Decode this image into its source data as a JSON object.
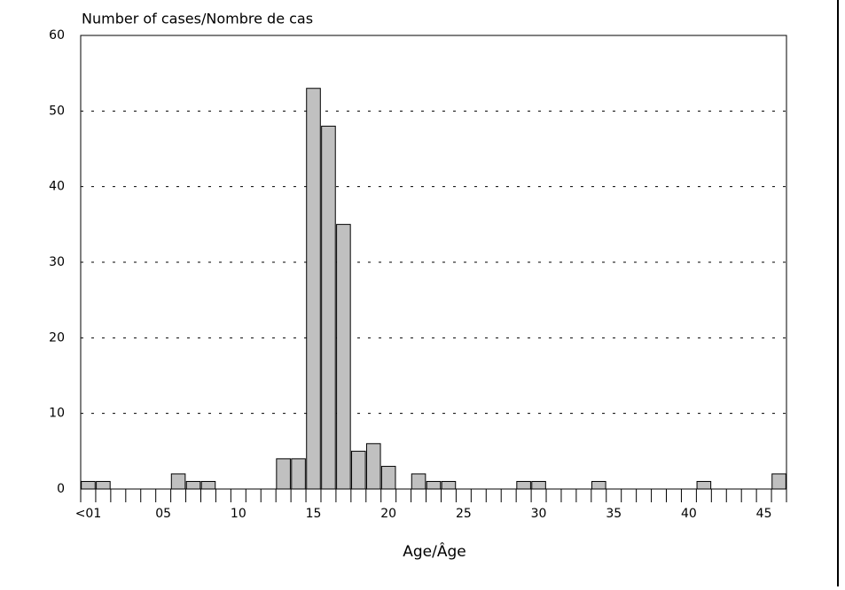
{
  "chart_data": {
    "type": "bar",
    "y_label": "Number of cases/Nombre de cas",
    "x_label": "Age/Âge",
    "categories": [
      "<01",
      null,
      null,
      null,
      null,
      "05",
      null,
      null,
      null,
      null,
      "10",
      null,
      null,
      null,
      null,
      "15",
      null,
      null,
      null,
      null,
      "20",
      null,
      null,
      null,
      null,
      "25",
      null,
      null,
      null,
      null,
      "30",
      null,
      null,
      null,
      null,
      "35",
      null,
      null,
      null,
      null,
      "40",
      null,
      null,
      null,
      null,
      "45",
      null
    ],
    "values": [
      1,
      1,
      0,
      0,
      0,
      0,
      2,
      1,
      1,
      0,
      0,
      0,
      0,
      4,
      4,
      53,
      48,
      35,
      5,
      6,
      3,
      0,
      2,
      1,
      1,
      0,
      0,
      0,
      0,
      1,
      1,
      0,
      0,
      0,
      1,
      0,
      0,
      0,
      0,
      0,
      0,
      1,
      0,
      0,
      0,
      0,
      2
    ],
    "color": "#c0c0c0",
    "ylim": [
      0,
      60
    ],
    "yticks": [
      0,
      10,
      20,
      30,
      40,
      50,
      60
    ],
    "grid": true
  }
}
